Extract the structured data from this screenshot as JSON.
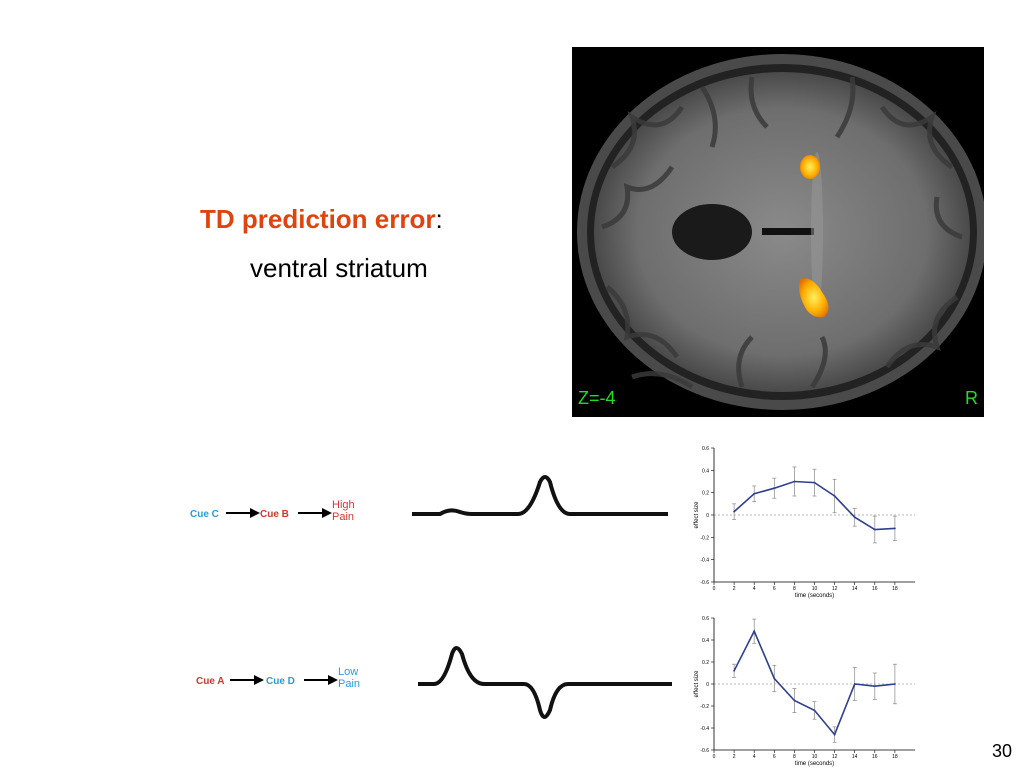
{
  "slide": {
    "title_bold": "TD prediction error",
    "title_colon": ":",
    "subtitle": "ventral striatum",
    "page_number": "30"
  },
  "brain": {
    "coordinate_label": "Z=-4",
    "side_label": "R",
    "activation_color": "#ffb000"
  },
  "sequences": [
    {
      "cue1": "Cue C",
      "cue1_color": "#2b9bd6",
      "cue2": "Cue B",
      "cue2_color": "#d0372c",
      "outcome_line1": "High",
      "outcome_line2": "Pain",
      "outcome_color": "#d0372c"
    },
    {
      "cue1": "Cue A",
      "cue1_color": "#d0372c",
      "cue2": "Cue D",
      "cue2_color": "#2b9bd6",
      "outcome_line1": "Low",
      "outcome_line2": "Pain",
      "outcome_color": "#2b9bd6"
    }
  ],
  "chart_data": [
    {
      "type": "line",
      "x": [
        2,
        4,
        6,
        8,
        10,
        12,
        14,
        16,
        18
      ],
      "values": [
        0.03,
        0.19,
        0.24,
        0.3,
        0.29,
        0.17,
        -0.02,
        -0.13,
        -0.12
      ],
      "errors": [
        0.07,
        0.07,
        0.09,
        0.13,
        0.12,
        0.15,
        0.08,
        0.12,
        0.11
      ],
      "xlabel": "time (seconds)",
      "ylabel": "effect size",
      "xlim": [
        0,
        20
      ],
      "ylim": [
        -0.6,
        0.6
      ],
      "xticks": [
        0,
        2,
        4,
        6,
        8,
        10,
        12,
        14,
        16,
        18
      ],
      "yticks": [
        -0.6,
        -0.4,
        -0.2,
        0,
        0.2,
        0.4,
        0.6
      ],
      "line_color": "#2f3f8f"
    },
    {
      "type": "line",
      "x": [
        2,
        4,
        6,
        8,
        10,
        12,
        14,
        16,
        18
      ],
      "values": [
        0.12,
        0.48,
        0.05,
        -0.15,
        -0.24,
        -0.46,
        0.0,
        -0.02,
        0.0
      ],
      "errors": [
        0.06,
        0.11,
        0.12,
        0.11,
        0.08,
        0.07,
        0.15,
        0.12,
        0.18
      ],
      "xlabel": "time (seconds)",
      "ylabel": "effect size",
      "xlim": [
        0,
        20
      ],
      "ylim": [
        -0.6,
        0.6
      ],
      "xticks": [
        0,
        2,
        4,
        6,
        8,
        10,
        12,
        14,
        16,
        18
      ],
      "yticks": [
        -0.6,
        -0.4,
        -0.2,
        0,
        0.2,
        0.4,
        0.6
      ],
      "line_color": "#2f3f8f"
    }
  ]
}
